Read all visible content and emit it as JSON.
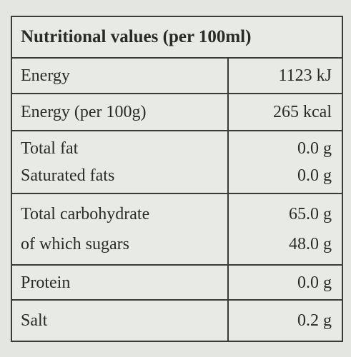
{
  "header": {
    "title": "Nutritional values (per 100ml)"
  },
  "table": {
    "groups": [
      {
        "rows": [
          [
            "Energy",
            "1123 kJ"
          ]
        ]
      },
      {
        "rows": [
          [
            "Energy (per 100g)",
            "265 kcal"
          ]
        ]
      },
      {
        "rows": [
          [
            "Total fat",
            "0.0 g"
          ],
          [
            "Saturated fats",
            "0.0 g"
          ]
        ]
      },
      {
        "rows": [
          [
            "Total carbohydrate",
            "65.0 g"
          ],
          [
            "of which sugars",
            "48.0 g"
          ]
        ]
      },
      {
        "rows": [
          [
            "Protein",
            "0.0 g"
          ]
        ]
      },
      {
        "rows": [
          [
            "Salt",
            "0.2 g"
          ]
        ]
      }
    ]
  }
}
